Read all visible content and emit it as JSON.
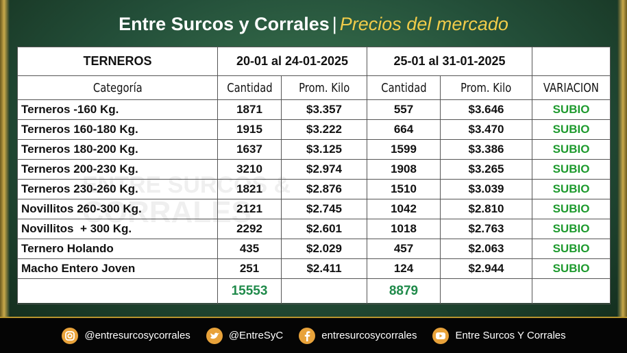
{
  "header": {
    "title": "Entre Surcos y Corrales",
    "separator": "|",
    "subtitle": "Precios del mercado"
  },
  "watermark": [
    "ENTRE SURCOS &",
    "CORRALES"
  ],
  "table": {
    "section": "TERNEROS",
    "periods": [
      "20-01 al 24-01-2025",
      "25-01 al 31-01-2025"
    ],
    "columns": [
      "Categoría",
      "Cantidad",
      "Prom. Kilo",
      "Cantidad",
      "Prom. Kilo",
      "VARIACION"
    ],
    "rows": [
      [
        "Terneros -160 Kg.",
        "1871",
        "$3.357",
        "557",
        "$3.646",
        "SUBIO"
      ],
      [
        "Terneros 160-180 Kg.",
        "1915",
        "$3.222",
        "664",
        "$3.470",
        "SUBIO"
      ],
      [
        "Terneros 180-200 Kg.",
        "1637",
        "$3.125",
        "1599",
        "$3.386",
        "SUBIO"
      ],
      [
        "Terneros 200-230 Kg.",
        "3210",
        "$2.974",
        "1908",
        "$3.265",
        "SUBIO"
      ],
      [
        "Terneros 230-260 Kg.",
        "1821",
        "$2.876",
        "1510",
        "$3.039",
        "SUBIO"
      ],
      [
        "Novillitos 260-300 Kg.",
        "2121",
        "$2.745",
        "1042",
        "$2.810",
        "SUBIO"
      ],
      [
        "Novillitos  + 300 Kg.",
        "2292",
        "$2.601",
        "1018",
        "$2.763",
        "SUBIO"
      ],
      [
        "Ternero Holando",
        "435",
        "$2.029",
        "457",
        "$2.063",
        "SUBIO"
      ],
      [
        "Macho Entero Joven",
        "251",
        "$2.411",
        "124",
        "$2.944",
        "SUBIO"
      ]
    ],
    "totals": [
      "15553",
      "8879"
    ]
  },
  "footer": [
    "@entresurcosycorrales",
    "@EntreSyC",
    "entresurcosycorrales",
    "Entre Surcos Y Corrales"
  ]
}
